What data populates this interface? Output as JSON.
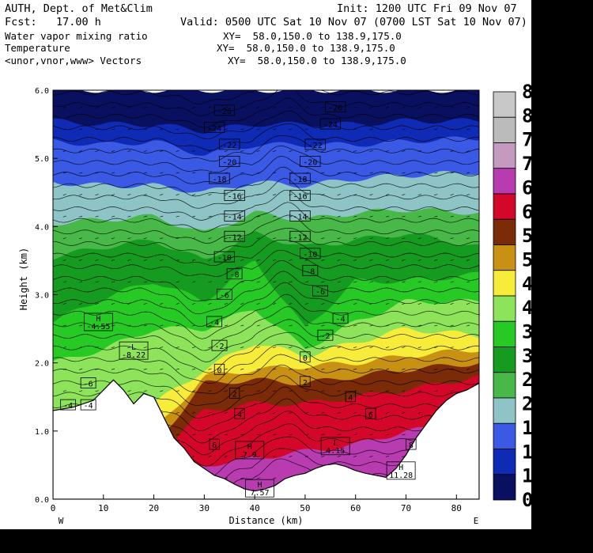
{
  "header": {
    "org": "AUTH, Dept. of Met&Clim",
    "init": "Init: 1200 UTC Fri 09 Nov 07",
    "fcst": "Fcst:   17.00 h",
    "valid": "Valid: 0500 UTC Sat 10 Nov 07 (0700 LST Sat 10 Nov 07)",
    "field1": "Water vapor mixing ratio",
    "field1_xy": "XY=  58.0,150.0 to 138.9,175.0",
    "field2": "Temperature",
    "field2_xy": "XY=  58.0,150.0 to 138.9,175.0",
    "field3": "<unor,vnor,www> Vectors",
    "field3_xy": "XY=  58.0,150.0 to 138.9,175.0"
  },
  "chart_data": {
    "type": "heatmap",
    "xlabel": "Distance (km)",
    "ylabel": "Height (km)",
    "xlim": [
      0,
      84.5
    ],
    "ylim": [
      0,
      6.0
    ],
    "x_ticks": [
      "0",
      "10",
      "20",
      "30",
      "40",
      "50",
      "60",
      "70",
      "80"
    ],
    "x_tick_values": [
      0,
      10,
      20,
      30,
      40,
      50,
      60,
      70,
      80
    ],
    "y_ticks": [
      "0.0",
      "1.0",
      "2.0",
      "3.0",
      "4.0",
      "5.0",
      "6.0"
    ],
    "y_tick_values": [
      0,
      1,
      2,
      3,
      4,
      5,
      6
    ],
    "west_label": "W",
    "east_label": "E",
    "terrain": {
      "x": [
        0,
        4,
        8,
        10,
        12,
        14,
        16,
        18,
        20,
        22,
        24,
        26,
        28,
        30,
        32,
        34,
        36,
        38,
        40,
        42,
        44,
        46,
        48,
        50,
        52,
        54,
        56,
        58,
        60,
        62,
        64,
        66,
        68,
        70,
        72,
        74,
        76,
        78,
        80,
        82,
        84.5
      ],
      "height": [
        1.3,
        1.35,
        1.45,
        1.6,
        1.75,
        1.6,
        1.4,
        1.55,
        1.5,
        1.2,
        0.9,
        0.75,
        0.55,
        0.45,
        0.35,
        0.3,
        0.22,
        0.15,
        0.12,
        0.15,
        0.2,
        0.3,
        0.35,
        0.38,
        0.45,
        0.5,
        0.52,
        0.48,
        0.42,
        0.38,
        0.35,
        0.32,
        0.45,
        0.65,
        0.9,
        1.1,
        1.3,
        1.45,
        1.55,
        1.6,
        1.7
      ]
    },
    "moisture_bands": [
      {
        "value": 0,
        "color": "#0a1060",
        "top": [
          6.0,
          6.0,
          6.0,
          6.0,
          6.0,
          6.0,
          6.0,
          6.0,
          6.0
        ]
      },
      {
        "value": 1,
        "color": "#0f2bb5",
        "top": [
          5.55,
          5.5,
          5.5,
          5.4,
          5.5,
          5.5,
          5.5,
          5.55,
          5.55
        ]
      },
      {
        "value": 1.5,
        "color": "#3a5ae6",
        "top": [
          5.25,
          5.2,
          5.25,
          5.05,
          5.2,
          5.2,
          5.2,
          5.25,
          5.3
        ]
      },
      {
        "value": 2,
        "color": "#8fc4c6",
        "top": [
          4.65,
          4.6,
          4.6,
          4.5,
          4.65,
          4.6,
          4.7,
          4.75,
          4.8
        ]
      },
      {
        "value": 2.5,
        "color": "#48b848",
        "top": [
          4.05,
          4.1,
          4.15,
          3.9,
          4.2,
          4.1,
          4.2,
          4.25,
          4.2
        ]
      },
      {
        "value": 3,
        "color": "#149b20",
        "top": [
          3.55,
          3.7,
          3.8,
          3.5,
          3.9,
          3.7,
          3.8,
          3.9,
          3.7
        ]
      },
      {
        "value": 3.5,
        "color": "#27c925",
        "top": [
          2.6,
          2.95,
          3.2,
          2.9,
          3.5,
          2.5,
          3.2,
          3.2,
          3.3
        ]
      },
      {
        "value": 4,
        "color": "#8de35a",
        "top": [
          2.0,
          2.2,
          2.5,
          2.5,
          2.8,
          2.2,
          2.6,
          2.9,
          2.9
        ]
      },
      {
        "value": 4.5,
        "color": "#f7ec3a",
        "top": [
          1.2,
          1.3,
          1.4,
          1.9,
          2.3,
          2.1,
          2.3,
          2.5,
          2.4
        ]
      },
      {
        "value": 5,
        "color": "#c89113",
        "top": [
          0.8,
          0.9,
          1.0,
          1.8,
          1.9,
          1.95,
          2.0,
          2.1,
          2.2
        ]
      },
      {
        "value": 5.5,
        "color": "#7b2b08",
        "top": [
          0.5,
          0.6,
          0.8,
          1.7,
          1.75,
          1.7,
          1.8,
          1.9,
          2.0
        ]
      },
      {
        "value": 6,
        "color": "#d4062a",
        "top": [
          0.3,
          0.4,
          0.6,
          1.3,
          1.4,
          1.4,
          1.5,
          1.6,
          1.8
        ]
      },
      {
        "value": 6.5,
        "color": "#b83bb0",
        "top": [
          0.2,
          0.2,
          0.3,
          0.5,
          0.6,
          0.7,
          0.8,
          1.0,
          1.1
        ]
      }
    ],
    "band_x": [
      0,
      10,
      20,
      30,
      40,
      50,
      60,
      70,
      84.5
    ],
    "temperature_labels": [
      {
        "text": "-26",
        "x": 34,
        "y": 5.7
      },
      {
        "text": "-26",
        "x": 56,
        "y": 5.75
      },
      {
        "text": "-24",
        "x": 32,
        "y": 5.45
      },
      {
        "text": "-24",
        "x": 55,
        "y": 5.5
      },
      {
        "text": "-22",
        "x": 35,
        "y": 5.2
      },
      {
        "text": "-22",
        "x": 52,
        "y": 5.2
      },
      {
        "text": "-20",
        "x": 35,
        "y": 4.95
      },
      {
        "text": "-20",
        "x": 51,
        "y": 4.95
      },
      {
        "text": "-18",
        "x": 33,
        "y": 4.7
      },
      {
        "text": "-18",
        "x": 49,
        "y": 4.7
      },
      {
        "text": "-16",
        "x": 36,
        "y": 4.45
      },
      {
        "text": "-16",
        "x": 49,
        "y": 4.45
      },
      {
        "text": "-14",
        "x": 36,
        "y": 4.15
      },
      {
        "text": "-14",
        "x": 49,
        "y": 4.15
      },
      {
        "text": "-12",
        "x": 36,
        "y": 3.85
      },
      {
        "text": "-12",
        "x": 49,
        "y": 3.85
      },
      {
        "text": "-10",
        "x": 34,
        "y": 3.55
      },
      {
        "text": "-10",
        "x": 51,
        "y": 3.6
      },
      {
        "text": "-8",
        "x": 36,
        "y": 3.3
      },
      {
        "text": "-8",
        "x": 51,
        "y": 3.35
      },
      {
        "text": "-6",
        "x": 34,
        "y": 3.0
      },
      {
        "text": "-6",
        "x": 53,
        "y": 3.05
      },
      {
        "text": "-4",
        "x": 32,
        "y": 2.6
      },
      {
        "text": "-4",
        "x": 57,
        "y": 2.65
      },
      {
        "text": "-2",
        "x": 33,
        "y": 2.25
      },
      {
        "text": "-2",
        "x": 54,
        "y": 2.4
      },
      {
        "text": "0",
        "x": 33,
        "y": 1.9
      },
      {
        "text": "0",
        "x": 50,
        "y": 2.08
      },
      {
        "text": "2",
        "x": 36,
        "y": 1.55
      },
      {
        "text": "2",
        "x": 50,
        "y": 1.72
      },
      {
        "text": "4",
        "x": 37,
        "y": 1.25
      },
      {
        "text": "4",
        "x": 59,
        "y": 1.5
      },
      {
        "text": "6",
        "x": 32,
        "y": 0.8
      },
      {
        "text": "6",
        "x": 63,
        "y": 1.25
      },
      {
        "text": "8",
        "x": 71,
        "y": 0.8
      },
      {
        "text": "-6",
        "x": 7,
        "y": 1.7
      },
      {
        "text": "-4",
        "x": 3,
        "y": 1.38
      },
      {
        "text": "-4",
        "x": 7,
        "y": 1.38
      }
    ],
    "extrema_labels": [
      {
        "kind": "H",
        "value": "-4.55",
        "x": 9,
        "y": 2.6
      },
      {
        "kind": "L",
        "value": "-8.22",
        "x": 16,
        "y": 2.18
      },
      {
        "kind": "H",
        "value": "7.9",
        "x": 39,
        "y": 0.72
      },
      {
        "kind": "H",
        "value": "7.57",
        "x": 41,
        "y": 0.16
      },
      {
        "kind": "L",
        "value": "4.15",
        "x": 56,
        "y": 0.78
      },
      {
        "kind": "H",
        "value": "11.28",
        "x": 69,
        "y": 0.42
      }
    ],
    "colorbar": {
      "labels": [
        "0",
        "1",
        "1",
        "1",
        "2",
        "2",
        "3",
        "3",
        "4",
        "4",
        "5",
        "5",
        "6",
        "6",
        "7",
        "7",
        "8",
        "8"
      ],
      "bottom_label": "g",
      "colors": [
        "#0a1060",
        "#0f2bb5",
        "#3a5ae6",
        "#8fc4c6",
        "#48b848",
        "#149b20",
        "#27c925",
        "#8de35a",
        "#f7ec3a",
        "#c89113",
        "#7b2b08",
        "#d4062a",
        "#b83bb0",
        "#c49ac0",
        "#bbbbbb",
        "#c8c8c8"
      ]
    }
  }
}
